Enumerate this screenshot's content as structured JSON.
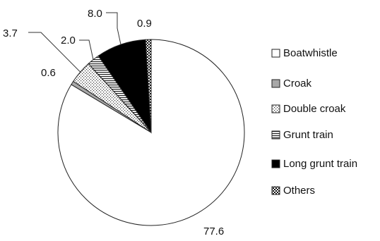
{
  "chart_data": {
    "type": "pie",
    "title": "",
    "slices": [
      {
        "label": "Boatwhistle",
        "value": 77.6,
        "value_label": "77.6",
        "pattern": "white"
      },
      {
        "label": "Croak",
        "value": 0.6,
        "value_label": "0.6",
        "pattern": "gray"
      },
      {
        "label": "Double croak",
        "value": 3.7,
        "value_label": "3.7",
        "pattern": "dots"
      },
      {
        "label": "Grunt train",
        "value": 2.0,
        "value_label": "2.0",
        "pattern": "hlines"
      },
      {
        "label": "Long grunt train",
        "value": 8.0,
        "value_label": "8.0",
        "pattern": "black"
      },
      {
        "label": "Others",
        "value": 0.9,
        "value_label": "0.9",
        "pattern": "checker"
      }
    ],
    "legend": {
      "position": "right"
    },
    "colors": {
      "stroke": "#222222",
      "gray": "#a8a8a8",
      "black": "#000000",
      "white": "#ffffff"
    }
  }
}
